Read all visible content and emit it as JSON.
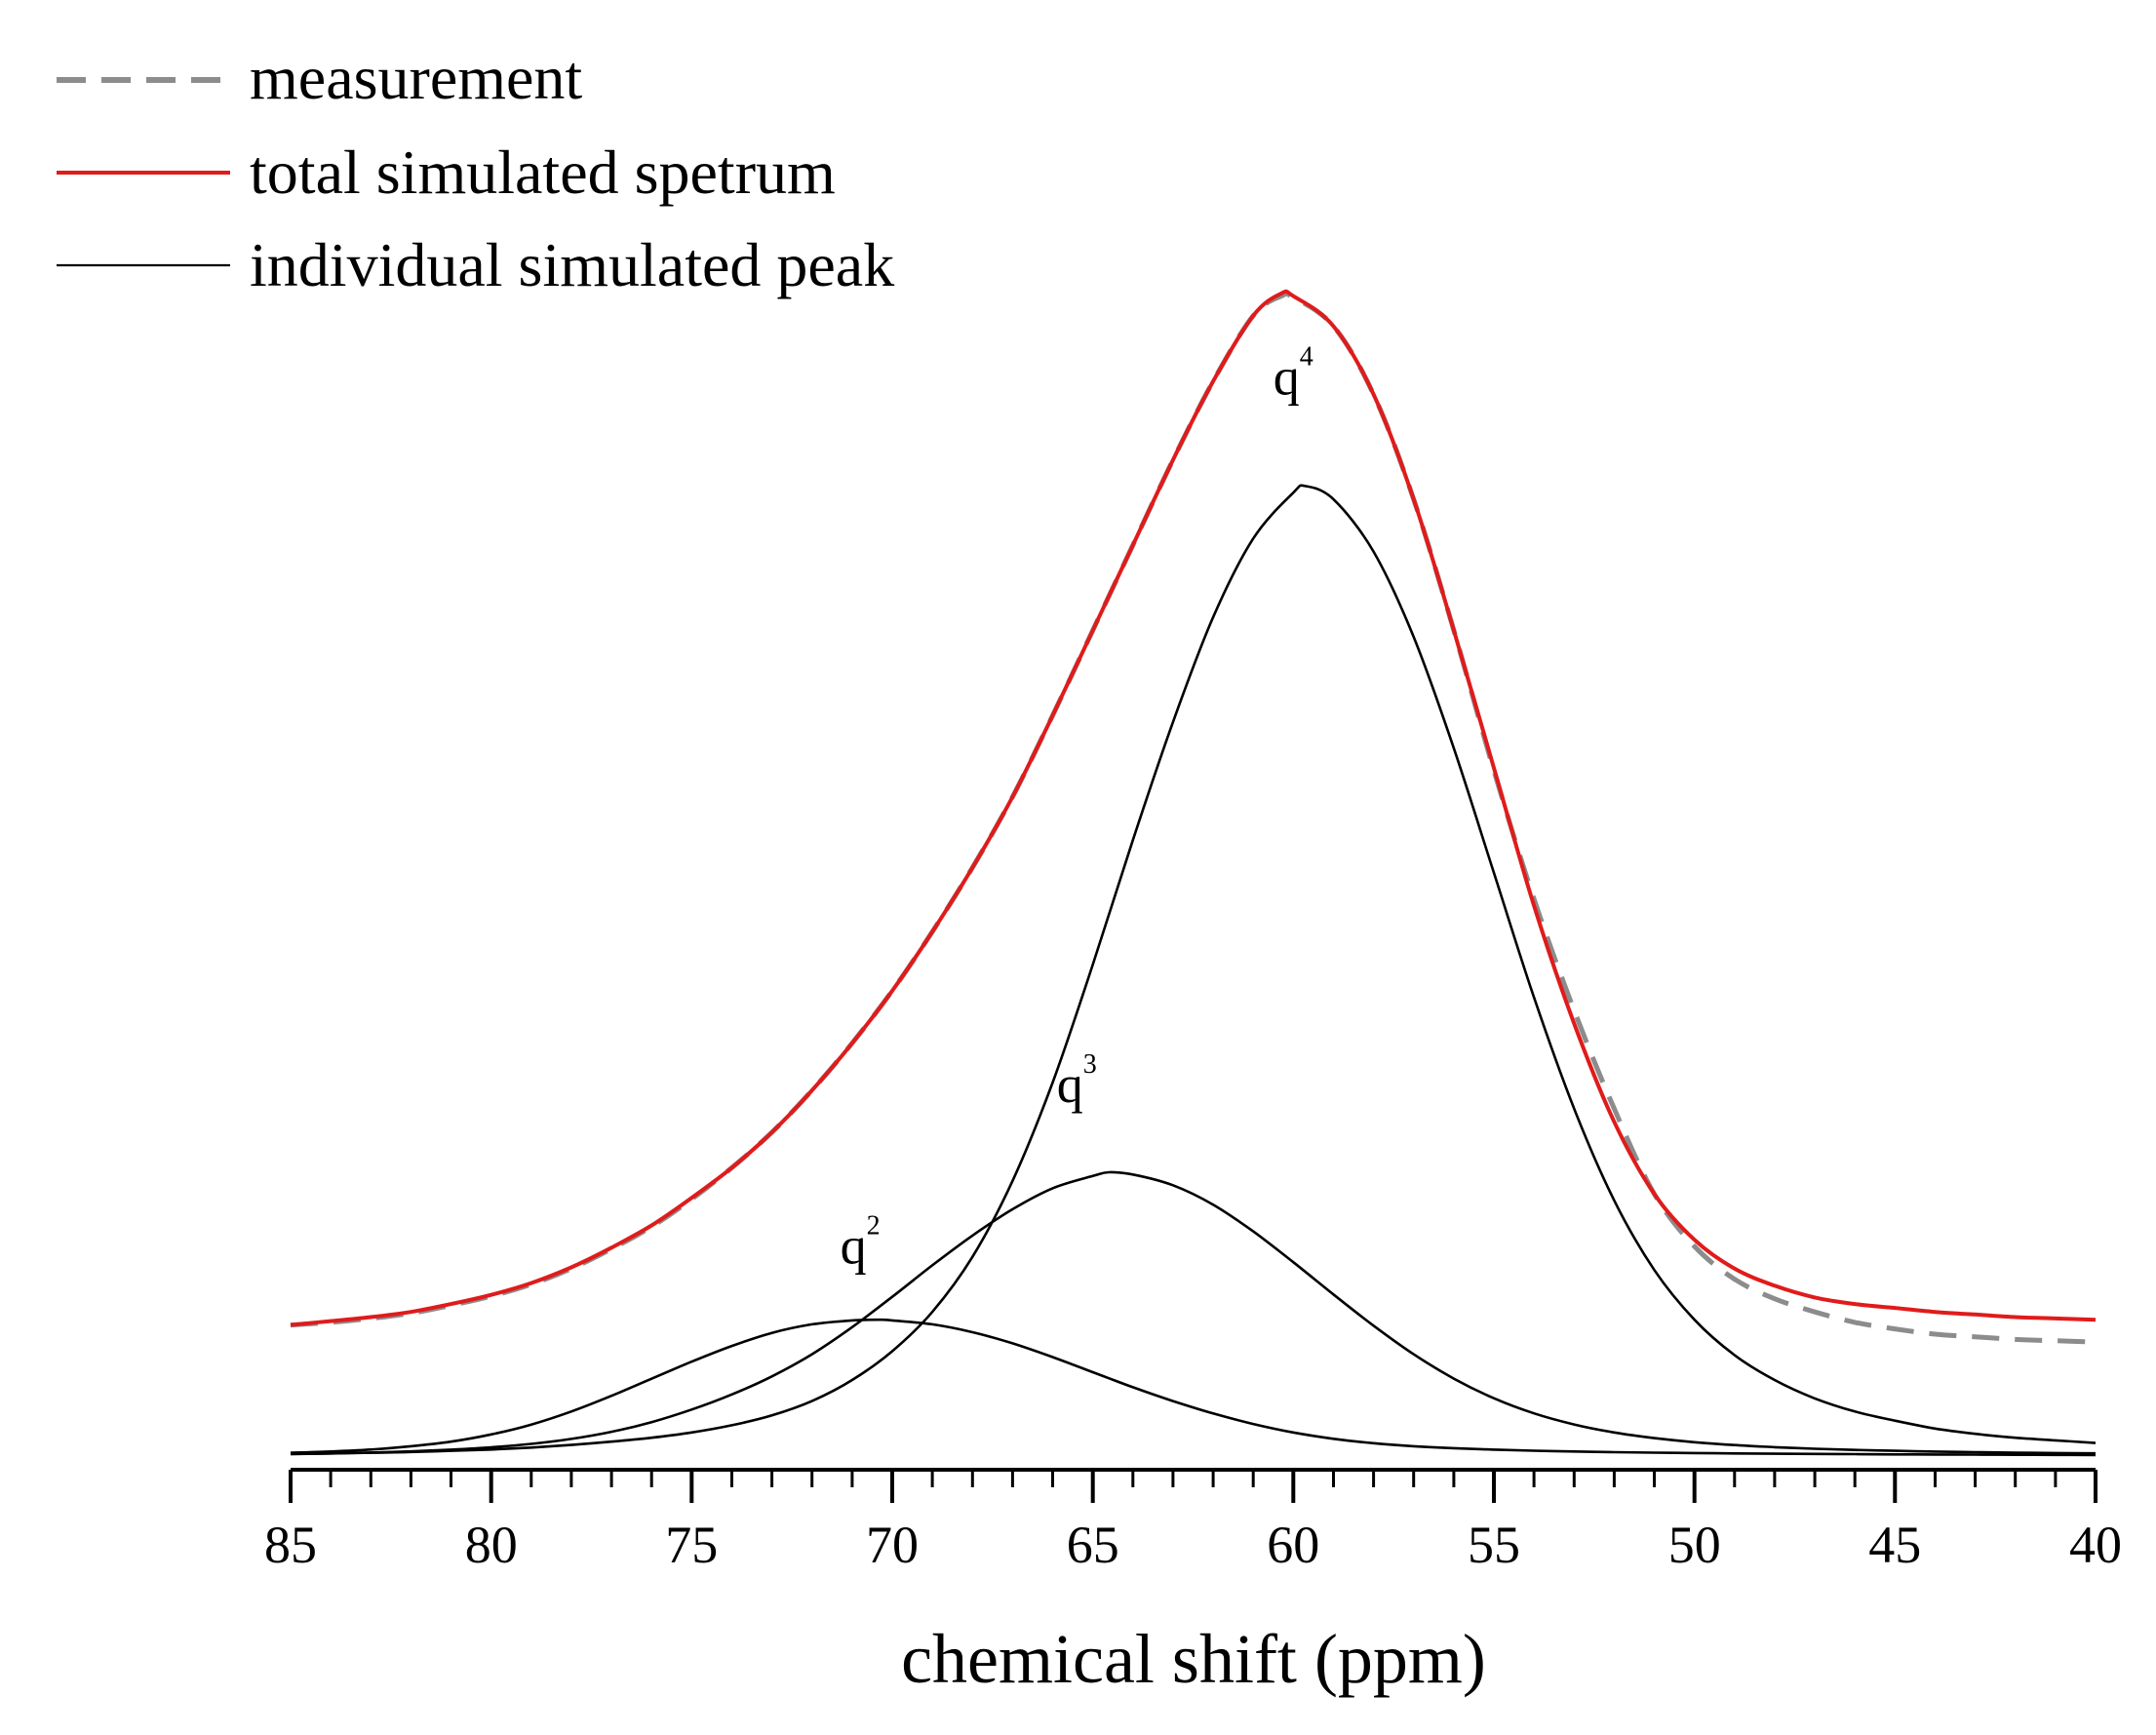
{
  "chart_data": {
    "type": "line",
    "title": "",
    "xlabel": "chemical shift (ppm)",
    "ylabel": "",
    "xlim": [
      85,
      40
    ],
    "x_reversed": true,
    "ylim": [
      0,
      1.0
    ],
    "grid": false,
    "legend_position": "top-left",
    "x_ticks_major": [
      "85",
      "80",
      "75",
      "70",
      "65",
      "60",
      "55",
      "50",
      "45",
      "40"
    ],
    "x_ticks_minor_step": 1,
    "legend": [
      {
        "label": "measurement",
        "style": "dashed",
        "color": "#8c8c8c"
      },
      {
        "label": "total simulated spetrum",
        "style": "solid",
        "color": "#e01b1b"
      },
      {
        "label": "individual simulated peak",
        "style": "solid",
        "color": "#000000"
      }
    ],
    "annotations": [
      {
        "base": "q",
        "sup": "2",
        "x": 70.8,
        "y": 0.147
      },
      {
        "base": "q",
        "sup": "3",
        "x": 65.4,
        "y": 0.27
      },
      {
        "base": "q",
        "sup": "4",
        "x": 60.0,
        "y": 0.81
      }
    ],
    "series": [
      {
        "name": "individual simulated peak q2",
        "color": "#000000",
        "x": [
          85,
          84,
          83,
          82,
          81,
          80,
          79,
          78,
          77,
          76,
          75,
          74,
          73,
          72,
          71,
          70.3,
          70,
          69,
          68,
          67,
          66,
          65,
          64,
          63,
          62,
          61,
          60,
          59,
          58,
          57,
          56,
          55,
          54,
          53,
          52,
          51,
          50,
          49,
          48,
          47,
          46,
          45,
          44,
          43,
          42,
          41,
          40
        ],
        "values": [
          0.0025,
          0.0035,
          0.005,
          0.0075,
          0.011,
          0.0165,
          0.024,
          0.034,
          0.046,
          0.059,
          0.072,
          0.084,
          0.094,
          0.1005,
          0.1035,
          0.104,
          0.1035,
          0.1005,
          0.0945,
          0.086,
          0.0755,
          0.064,
          0.0525,
          0.042,
          0.0325,
          0.0245,
          0.018,
          0.0132,
          0.0098,
          0.0075,
          0.006,
          0.0049,
          0.0041,
          0.0035,
          0.003,
          0.0026,
          0.0023,
          0.002,
          0.0018,
          0.0016,
          0.0015,
          0.0013,
          0.0012,
          0.0011,
          0.001,
          0.0009,
          0.0008
        ]
      },
      {
        "name": "individual simulated peak q3",
        "color": "#000000",
        "x": [
          85,
          84,
          83,
          82,
          81,
          80,
          79,
          78,
          77,
          76,
          75,
          74,
          73,
          72,
          71,
          70,
          69,
          68,
          67,
          66,
          65,
          64.6,
          64,
          63,
          62,
          61,
          60,
          59,
          58,
          57,
          56,
          55,
          54,
          53,
          52,
          51,
          50,
          49,
          48,
          47,
          46,
          45,
          44,
          43,
          42,
          41,
          40
        ],
        "values": [
          0.0015,
          0.002,
          0.0027,
          0.0036,
          0.0049,
          0.0067,
          0.0093,
          0.0131,
          0.0185,
          0.0259,
          0.0355,
          0.047,
          0.0608,
          0.0777,
          0.0984,
          0.1215,
          0.1455,
          0.1682,
          0.1883,
          0.2043,
          0.2137,
          0.2165,
          0.2148,
          0.2066,
          0.1918,
          0.1714,
          0.1479,
          0.1233,
          0.0995,
          0.0777,
          0.0591,
          0.0441,
          0.0326,
          0.0241,
          0.018,
          0.0137,
          0.0106,
          0.0084,
          0.0068,
          0.0056,
          0.0047,
          0.004,
          0.0034,
          0.003,
          0.0026,
          0.0023,
          0.0021
        ]
      },
      {
        "name": "individual simulated peak q4",
        "color": "#000000",
        "x": [
          85,
          84,
          83,
          82,
          81,
          80,
          79,
          78,
          77,
          76,
          75,
          74,
          73,
          72,
          71,
          70,
          69,
          68,
          67,
          66,
          65,
          64,
          63,
          62,
          61,
          60,
          59.7,
          59,
          58,
          57,
          56,
          55,
          54,
          53,
          52,
          51,
          50,
          49,
          48,
          47,
          46,
          45,
          44,
          43,
          42,
          41,
          40
        ],
        "values": [
          0.0016,
          0.002,
          0.0025,
          0.0031,
          0.004,
          0.005,
          0.0065,
          0.0085,
          0.011,
          0.014,
          0.018,
          0.0235,
          0.031,
          0.042,
          0.058,
          0.08,
          0.11,
          0.152,
          0.21,
          0.285,
          0.375,
          0.47,
          0.56,
          0.64,
          0.7,
          0.735,
          0.74,
          0.73,
          0.69,
          0.625,
          0.54,
          0.445,
          0.35,
          0.265,
          0.195,
          0.142,
          0.104,
          0.077,
          0.058,
          0.044,
          0.034,
          0.027,
          0.021,
          0.017,
          0.014,
          0.012,
          0.01
        ]
      },
      {
        "name": "total simulated spetrum",
        "color": "#e01b1b",
        "x": [
          85,
          84,
          83,
          82,
          81,
          80,
          79,
          78,
          77,
          76,
          75,
          74,
          73,
          72,
          71,
          70,
          69,
          68,
          67,
          66,
          65,
          64,
          63,
          62,
          61,
          60.3,
          60,
          59,
          58,
          57,
          56,
          55,
          54,
          53,
          52,
          51,
          50,
          49,
          48,
          47,
          46,
          45,
          44,
          43,
          42,
          41,
          40
        ],
        "values": [
          0.1,
          0.103,
          0.106,
          0.11,
          0.116,
          0.123,
          0.132,
          0.144,
          0.159,
          0.176,
          0.197,
          0.22,
          0.247,
          0.279,
          0.315,
          0.355,
          0.4,
          0.449,
          0.503,
          0.565,
          0.63,
          0.695,
          0.76,
          0.82,
          0.87,
          0.887,
          0.885,
          0.862,
          0.81,
          0.73,
          0.63,
          0.525,
          0.42,
          0.33,
          0.255,
          0.2,
          0.165,
          0.143,
          0.13,
          0.121,
          0.116,
          0.113,
          0.11,
          0.108,
          0.106,
          0.105,
          0.104
        ]
      },
      {
        "name": "measurement",
        "color": "#8c8c8c",
        "x": [
          85,
          84,
          83,
          82,
          81,
          80,
          79,
          78,
          77,
          76,
          75,
          74,
          73,
          72,
          71,
          70,
          69,
          68,
          67,
          66,
          65,
          64,
          63,
          62,
          61,
          60.3,
          60,
          59,
          58,
          57,
          56,
          55,
          54,
          53,
          52,
          51,
          50,
          49,
          48,
          47,
          46,
          45,
          44,
          43,
          42,
          41,
          40
        ],
        "values": [
          0.1,
          0.102,
          0.105,
          0.109,
          0.115,
          0.122,
          0.131,
          0.143,
          0.158,
          0.175,
          0.196,
          0.22,
          0.247,
          0.279,
          0.315,
          0.355,
          0.4,
          0.449,
          0.503,
          0.565,
          0.63,
          0.695,
          0.76,
          0.82,
          0.87,
          0.885,
          0.884,
          0.862,
          0.81,
          0.73,
          0.63,
          0.523,
          0.425,
          0.34,
          0.265,
          0.2,
          0.16,
          0.135,
          0.12,
          0.11,
          0.102,
          0.097,
          0.093,
          0.091,
          0.089,
          0.088,
          0.087
        ]
      }
    ]
  }
}
